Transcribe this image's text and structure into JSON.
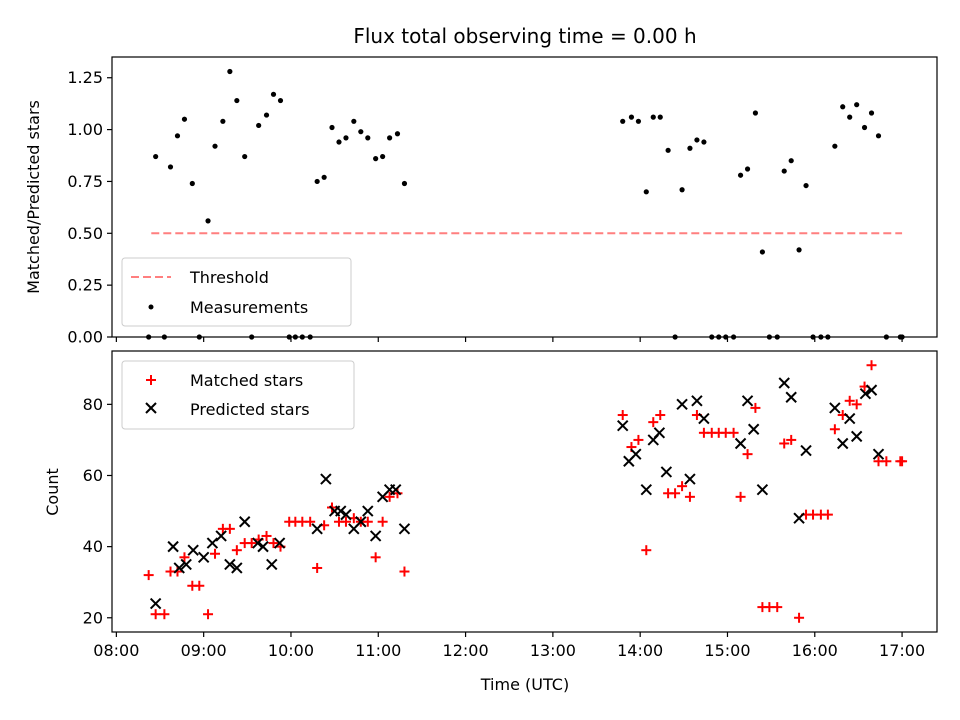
{
  "chart_data": [
    {
      "type": "scatter",
      "title": "Flux total observing time = 0.00 h",
      "xlabel": "",
      "ylabel": "Matched/Predicted stars",
      "ylim": [
        0,
        1.35
      ],
      "yticks": [
        0,
        0.25,
        0.5,
        0.75,
        1.0,
        1.25
      ],
      "ytick_labels": [
        "0.00",
        "0.25",
        "0.50",
        "0.75",
        "1.00",
        "1.25"
      ],
      "xlim": [
        7.95,
        17.4
      ],
      "xticks": [
        8,
        9,
        10,
        11,
        12,
        13,
        14,
        15,
        16,
        17
      ],
      "xtick_labels": [],
      "grid": false,
      "legend": "lower-left",
      "threshold": {
        "name": "Threshold",
        "value": 0.5,
        "x": [
          8.4,
          17.0
        ],
        "color": "#ff7f7f",
        "style": "dashed"
      },
      "series": [
        {
          "name": "Measurements",
          "color": "#000000",
          "marker": "dot",
          "points": [
            [
              8.37,
              0
            ],
            [
              8.45,
              0.87
            ],
            [
              8.55,
              0
            ],
            [
              8.62,
              0.82
            ],
            [
              8.7,
              0.97
            ],
            [
              8.78,
              1.05
            ],
            [
              8.87,
              0.74
            ],
            [
              8.95,
              0
            ],
            [
              9.05,
              0.56
            ],
            [
              9.13,
              0.92
            ],
            [
              9.22,
              1.04
            ],
            [
              9.3,
              1.28
            ],
            [
              9.38,
              1.14
            ],
            [
              9.47,
              0.87
            ],
            [
              9.55,
              0
            ],
            [
              9.63,
              1.02
            ],
            [
              9.72,
              1.07
            ],
            [
              9.8,
              1.17
            ],
            [
              9.88,
              1.14
            ],
            [
              9.98,
              0
            ],
            [
              10.05,
              0
            ],
            [
              10.13,
              0
            ],
            [
              10.22,
              0
            ],
            [
              10.3,
              0.75
            ],
            [
              10.38,
              0.77
            ],
            [
              10.47,
              1.01
            ],
            [
              10.55,
              0.94
            ],
            [
              10.63,
              0.96
            ],
            [
              10.72,
              1.04
            ],
            [
              10.8,
              0.99
            ],
            [
              10.88,
              0.96
            ],
            [
              10.97,
              0.86
            ],
            [
              11.05,
              0.87
            ],
            [
              11.13,
              0.96
            ],
            [
              11.22,
              0.98
            ],
            [
              11.3,
              0.74
            ],
            [
              13.8,
              1.04
            ],
            [
              13.9,
              1.06
            ],
            [
              13.98,
              1.04
            ],
            [
              14.07,
              0.7
            ],
            [
              14.15,
              1.06
            ],
            [
              14.23,
              1.06
            ],
            [
              14.32,
              0.9
            ],
            [
              14.4,
              0
            ],
            [
              14.48,
              0.71
            ],
            [
              14.57,
              0.91
            ],
            [
              14.65,
              0.95
            ],
            [
              14.73,
              0.94
            ],
            [
              14.82,
              0
            ],
            [
              14.9,
              0
            ],
            [
              14.98,
              0
            ],
            [
              15.07,
              0
            ],
            [
              15.15,
              0.78
            ],
            [
              15.23,
              0.81
            ],
            [
              15.32,
              1.08
            ],
            [
              15.4,
              0.41
            ],
            [
              15.48,
              0
            ],
            [
              15.57,
              0
            ],
            [
              15.65,
              0.8
            ],
            [
              15.73,
              0.85
            ],
            [
              15.82,
              0.42
            ],
            [
              15.9,
              0.73
            ],
            [
              15.98,
              0
            ],
            [
              16.07,
              0
            ],
            [
              16.15,
              0
            ],
            [
              16.23,
              0.92
            ],
            [
              16.32,
              1.11
            ],
            [
              16.4,
              1.06
            ],
            [
              16.48,
              1.12
            ],
            [
              16.57,
              1.01
            ],
            [
              16.65,
              1.08
            ],
            [
              16.73,
              0.97
            ],
            [
              16.82,
              0
            ],
            [
              16.98,
              0
            ],
            [
              17.0,
              0
            ]
          ]
        }
      ]
    },
    {
      "type": "scatter",
      "title": "",
      "xlabel": "Time (UTC)",
      "ylabel": "Count",
      "ylim": [
        16,
        95
      ],
      "yticks": [
        20,
        40,
        60,
        80
      ],
      "ytick_labels": [
        "20",
        "40",
        "60",
        "80"
      ],
      "xlim": [
        7.95,
        17.4
      ],
      "xticks": [
        8,
        9,
        10,
        11,
        12,
        13,
        14,
        15,
        16,
        17
      ],
      "xtick_labels": [
        "08:00",
        "09:00",
        "10:00",
        "11:00",
        "12:00",
        "13:00",
        "14:00",
        "15:00",
        "16:00",
        "17:00"
      ],
      "grid": false,
      "legend": "upper-left",
      "series": [
        {
          "name": "Matched stars",
          "color": "#ff0000",
          "marker": "plus",
          "points": [
            [
              8.37,
              32
            ],
            [
              8.45,
              21
            ],
            [
              8.55,
              21
            ],
            [
              8.62,
              33
            ],
            [
              8.7,
              33
            ],
            [
              8.78,
              37
            ],
            [
              8.87,
              29
            ],
            [
              8.95,
              29
            ],
            [
              9.05,
              21
            ],
            [
              9.13,
              38
            ],
            [
              9.22,
              45
            ],
            [
              9.3,
              45
            ],
            [
              9.38,
              39
            ],
            [
              9.47,
              41
            ],
            [
              9.55,
              41
            ],
            [
              9.63,
              42
            ],
            [
              9.72,
              43
            ],
            [
              9.8,
              41
            ],
            [
              9.88,
              40
            ],
            [
              9.98,
              47
            ],
            [
              10.05,
              47
            ],
            [
              10.13,
              47
            ],
            [
              10.22,
              47
            ],
            [
              10.3,
              34
            ],
            [
              10.38,
              46
            ],
            [
              10.47,
              51
            ],
            [
              10.55,
              47
            ],
            [
              10.63,
              47
            ],
            [
              10.72,
              48
            ],
            [
              10.8,
              47
            ],
            [
              10.88,
              47
            ],
            [
              10.97,
              37
            ],
            [
              11.05,
              47
            ],
            [
              11.13,
              54
            ],
            [
              11.22,
              55
            ],
            [
              11.3,
              33
            ],
            [
              13.8,
              77
            ],
            [
              13.9,
              68
            ],
            [
              13.98,
              70
            ],
            [
              14.07,
              39
            ],
            [
              14.15,
              75
            ],
            [
              14.23,
              77
            ],
            [
              14.32,
              55
            ],
            [
              14.4,
              55
            ],
            [
              14.48,
              57
            ],
            [
              14.57,
              54
            ],
            [
              14.65,
              77
            ],
            [
              14.73,
              72
            ],
            [
              14.82,
              72
            ],
            [
              14.9,
              72
            ],
            [
              14.98,
              72
            ],
            [
              15.07,
              72
            ],
            [
              15.15,
              54
            ],
            [
              15.23,
              66
            ],
            [
              15.32,
              79
            ],
            [
              15.4,
              23
            ],
            [
              15.48,
              23
            ],
            [
              15.57,
              23
            ],
            [
              15.65,
              69
            ],
            [
              15.73,
              70
            ],
            [
              15.82,
              20
            ],
            [
              15.9,
              49
            ],
            [
              15.98,
              49
            ],
            [
              16.07,
              49
            ],
            [
              16.15,
              49
            ],
            [
              16.23,
              73
            ],
            [
              16.32,
              77
            ],
            [
              16.4,
              81
            ],
            [
              16.48,
              80
            ],
            [
              16.57,
              85
            ],
            [
              16.65,
              91
            ],
            [
              16.73,
              64
            ],
            [
              16.82,
              64
            ],
            [
              16.98,
              64
            ],
            [
              17.0,
              64
            ]
          ]
        },
        {
          "name": "Predicted stars",
          "color": "#000000",
          "marker": "x",
          "points": [
            [
              8.45,
              24
            ],
            [
              8.65,
              40
            ],
            [
              8.72,
              34
            ],
            [
              8.8,
              35
            ],
            [
              8.88,
              39
            ],
            [
              9.0,
              37
            ],
            [
              9.1,
              41
            ],
            [
              9.2,
              43
            ],
            [
              9.3,
              35
            ],
            [
              9.38,
              34
            ],
            [
              9.47,
              47
            ],
            [
              9.62,
              41
            ],
            [
              9.68,
              40
            ],
            [
              9.78,
              35
            ],
            [
              9.87,
              41
            ],
            [
              10.3,
              45
            ],
            [
              10.4,
              59
            ],
            [
              10.5,
              50
            ],
            [
              10.57,
              50
            ],
            [
              10.63,
              49
            ],
            [
              10.72,
              45
            ],
            [
              10.8,
              47
            ],
            [
              10.88,
              50
            ],
            [
              10.97,
              43
            ],
            [
              11.05,
              54
            ],
            [
              11.13,
              56
            ],
            [
              11.2,
              56
            ],
            [
              11.3,
              45
            ],
            [
              13.8,
              74
            ],
            [
              13.87,
              64
            ],
            [
              13.95,
              66
            ],
            [
              14.07,
              56
            ],
            [
              14.15,
              70
            ],
            [
              14.22,
              72
            ],
            [
              14.3,
              61
            ],
            [
              14.48,
              80
            ],
            [
              14.57,
              59
            ],
            [
              14.65,
              81
            ],
            [
              14.73,
              76
            ],
            [
              15.15,
              69
            ],
            [
              15.23,
              81
            ],
            [
              15.3,
              73
            ],
            [
              15.4,
              56
            ],
            [
              15.65,
              86
            ],
            [
              15.73,
              82
            ],
            [
              15.82,
              48
            ],
            [
              15.9,
              67
            ],
            [
              16.23,
              79
            ],
            [
              16.32,
              69
            ],
            [
              16.4,
              76
            ],
            [
              16.48,
              71
            ],
            [
              16.58,
              83
            ],
            [
              16.65,
              84
            ],
            [
              16.73,
              66
            ]
          ]
        }
      ]
    }
  ]
}
